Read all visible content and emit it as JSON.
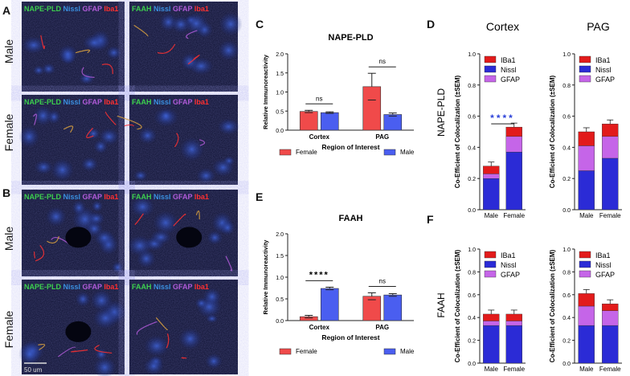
{
  "panel_letters": {
    "A": "A",
    "B": "B",
    "C": "C",
    "D": "D",
    "E": "E",
    "F": "F"
  },
  "micrographs": {
    "row_labels": {
      "A_top": "Male",
      "A_bottom": "Female",
      "B_top": "Male",
      "B_bottom": "Female"
    },
    "marker_labels": {
      "nape": [
        "NAPE-PLD",
        "Nissl",
        "GFAP",
        "Iba1"
      ],
      "faah": [
        "FAAH",
        "Nissl",
        "GFAP",
        "Iba1"
      ]
    },
    "scale_bar": "50 um",
    "colors": {
      "nape": "#3ccf4e",
      "faah": "#3ccf4e",
      "nissl": "#3a8fe0",
      "gfap": "#b05bd8",
      "iba1": "#ff3030"
    }
  },
  "chart_data": [
    {
      "id": "C",
      "type": "bar",
      "title": "NAPE-PLD",
      "ylabel": "Relative Immunoreactivity",
      "xlabel": "Region of Interest",
      "ylim": [
        0,
        2.0
      ],
      "yticks": [
        "0.0",
        "0.5",
        "1.0",
        "1.5",
        "2.0"
      ],
      "categories": [
        "Cortex",
        "PAG"
      ],
      "series": [
        {
          "name": "Female",
          "color": "#f04a4a",
          "values": [
            0.49,
            1.14
          ],
          "errors": [
            0.03,
            0.35
          ]
        },
        {
          "name": "Male",
          "color": "#4a5ef0",
          "values": [
            0.46,
            0.41
          ],
          "errors": [
            0.02,
            0.04
          ]
        }
      ],
      "significance": [
        "ns",
        "ns"
      ]
    },
    {
      "id": "E",
      "type": "bar",
      "title": "FAAH",
      "ylabel": "Relative Immunoreactivity",
      "xlabel": "Region of Interest",
      "ylim": [
        0,
        2.0
      ],
      "yticks": [
        "0.0",
        "0.5",
        "1.0",
        "1.5",
        "2.0"
      ],
      "categories": [
        "Cortex",
        "PAG"
      ],
      "series": [
        {
          "name": "Female",
          "color": "#f04a4a",
          "values": [
            0.09,
            0.56
          ],
          "errors": [
            0.03,
            0.08
          ]
        },
        {
          "name": "Male",
          "color": "#4a5ef0",
          "values": [
            0.74,
            0.59
          ],
          "errors": [
            0.03,
            0.03
          ]
        }
      ],
      "significance": [
        "****",
        "ns"
      ]
    },
    {
      "id": "D1",
      "type": "bar",
      "stacked": true,
      "title": "Cortex",
      "ylabel": "Co-Efficient of Colocalization (±SEM)",
      "side_label": "NAPE-PLD",
      "ylim": [
        0,
        1.0
      ],
      "yticks": [
        "0.0",
        "0.2",
        "0.4",
        "0.6",
        "0.8",
        "1.0"
      ],
      "categories": [
        "Male",
        "Female"
      ],
      "series": [
        {
          "name": "Nissl",
          "color": "#2b2bd6",
          "values": [
            0.2,
            0.37
          ]
        },
        {
          "name": "GFAP",
          "color": "#c565e8",
          "values": [
            0.03,
            0.1
          ]
        },
        {
          "name": "IBa1",
          "color": "#e21b1b",
          "values": [
            0.05,
            0.06
          ]
        }
      ],
      "significance": "****"
    },
    {
      "id": "D2",
      "type": "bar",
      "stacked": true,
      "title": "PAG",
      "ylabel": "Co-Efficient of Colocalization (±SEM)",
      "ylim": [
        0,
        1.0
      ],
      "yticks": [
        "0.0",
        "0.2",
        "0.4",
        "0.6",
        "0.8",
        "1.0"
      ],
      "categories": [
        "Male",
        "Female"
      ],
      "series": [
        {
          "name": "Nissl",
          "color": "#2b2bd6",
          "values": [
            0.25,
            0.33
          ]
        },
        {
          "name": "GFAP",
          "color": "#c565e8",
          "values": [
            0.16,
            0.14
          ]
        },
        {
          "name": "IBa1",
          "color": "#e21b1b",
          "values": [
            0.09,
            0.08
          ]
        }
      ]
    },
    {
      "id": "F1",
      "type": "bar",
      "stacked": true,
      "title": "",
      "ylabel": "Co-Efficient of Colocalization (±SEM)",
      "side_label": "FAAH",
      "ylim": [
        0,
        1.0
      ],
      "yticks": [
        "0.0",
        "0.2",
        "0.4",
        "0.6",
        "0.8",
        "1.0"
      ],
      "categories": [
        "Male",
        "Female"
      ],
      "series": [
        {
          "name": "Nissl",
          "color": "#2b2bd6",
          "values": [
            0.33,
            0.33
          ]
        },
        {
          "name": "GFAP",
          "color": "#c565e8",
          "values": [
            0.04,
            0.04
          ]
        },
        {
          "name": "IBa1",
          "color": "#e21b1b",
          "values": [
            0.06,
            0.06
          ]
        }
      ]
    },
    {
      "id": "F2",
      "type": "bar",
      "stacked": true,
      "title": "",
      "ylabel": "Co-Efficient of Colocalization (±SEM)",
      "ylim": [
        0,
        1.0
      ],
      "yticks": [
        "0.0",
        "0.2",
        "0.4",
        "0.6",
        "0.8",
        "1.0"
      ],
      "categories": [
        "Male",
        "Female"
      ],
      "series": [
        {
          "name": "Nissl",
          "color": "#2b2bd6",
          "values": [
            0.33,
            0.33
          ]
        },
        {
          "name": "GFAP",
          "color": "#c565e8",
          "values": [
            0.17,
            0.13
          ]
        },
        {
          "name": "IBa1",
          "color": "#e21b1b",
          "values": [
            0.11,
            0.06
          ]
        }
      ]
    }
  ]
}
